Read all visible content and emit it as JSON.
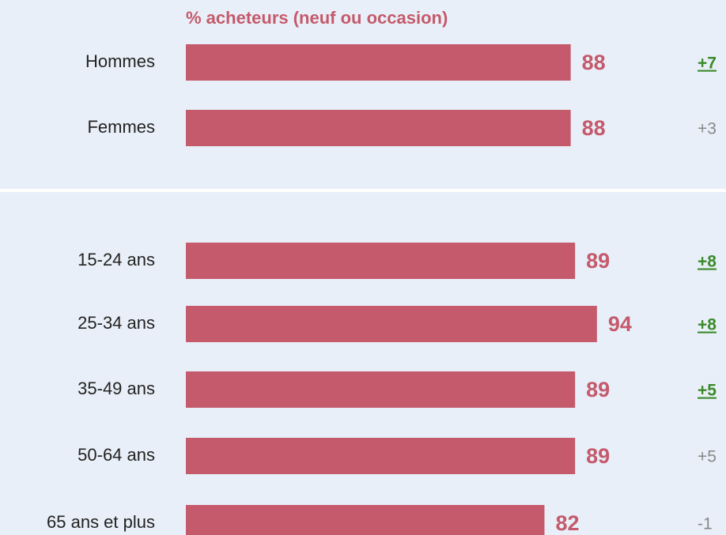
{
  "chart_data": {
    "type": "bar",
    "orientation": "horizontal",
    "title": "% acheteurs (neuf ou occasion)",
    "categories": [
      "Hommes",
      "Femmes",
      "15-24 ans",
      "25-34 ans",
      "35-49 ans",
      "50-64 ans",
      "65 ans et plus"
    ],
    "values": [
      88,
      88,
      89,
      94,
      89,
      89,
      82
    ],
    "color": "#c45a6b",
    "changes": [
      "+7",
      "+3",
      "+8",
      "+8",
      "+5",
      "+5",
      "-1"
    ],
    "change_significant": [
      true,
      false,
      true,
      true,
      true,
      false,
      false
    ],
    "significant_color": "#3a8a2a",
    "neutral_color": "#888888"
  }
}
